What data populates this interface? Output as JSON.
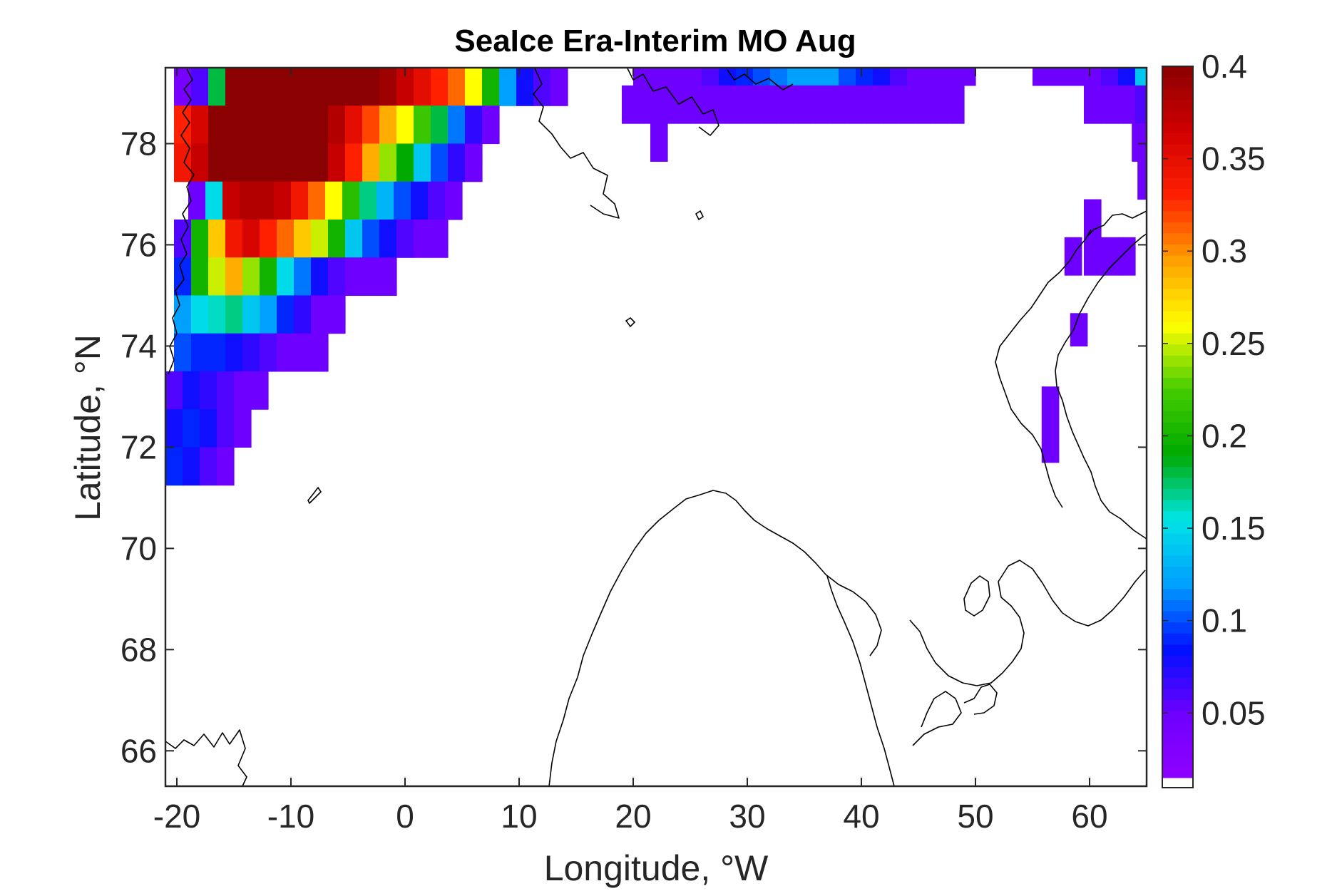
{
  "chart_data": {
    "type": "heatmap",
    "title": "SeaIce Era-Interim MO Aug",
    "xlabel": "Longitude, °W",
    "ylabel": "Latitude, °N",
    "xlim": [
      -21,
      65
    ],
    "ylim": [
      65.3,
      79.5
    ],
    "xticks": [
      -20,
      -10,
      0,
      10,
      20,
      30,
      40,
      50,
      60
    ],
    "yticks": [
      66,
      68,
      70,
      72,
      74,
      76,
      78
    ],
    "colorbar": {
      "clim": [
        0.015,
        0.4
      ],
      "ticks": [
        "0.05",
        "0.1",
        "0.15",
        "0.2",
        "0.25",
        "0.3",
        "0.35",
        "0.4"
      ],
      "colormap": [
        "#ffffff",
        "#8f00ff",
        "#6e00ff",
        "#0010ff",
        "#00a0ff",
        "#00e5e5",
        "#00aa00",
        "#44cc00",
        "#ffff00",
        "#ffa000",
        "#ff2000",
        "#d00000",
        "#8b0000"
      ]
    },
    "cell_size": {
      "lon": 1.5,
      "lat": 0.75
    },
    "cells": [
      {
        "lat0": 78.75,
        "lat1": 79.5,
        "lon": -20.25,
        "values": [
          0.04,
          0.06,
          0.18,
          0.4,
          0.4,
          0.4,
          0.4,
          0.4,
          0.4,
          0.4,
          0.4,
          0.4,
          0.39,
          0.37,
          0.35,
          0.33,
          0.31,
          0.26,
          0.2,
          0.12,
          0.08,
          0.06,
          0.05
        ]
      },
      {
        "lat0": 78.0,
        "lat1": 78.75,
        "lon": -20.25,
        "values": [
          0.33,
          0.36,
          0.4,
          0.4,
          0.4,
          0.4,
          0.4,
          0.4,
          0.4,
          0.38,
          0.35,
          0.32,
          0.29,
          0.26,
          0.22,
          0.18,
          0.11,
          0.07,
          0.05
        ]
      },
      {
        "lat0": 77.25,
        "lat1": 78.0,
        "lon": -20.25,
        "values": [
          0.34,
          0.37,
          0.4,
          0.4,
          0.4,
          0.4,
          0.4,
          0.4,
          0.4,
          0.37,
          0.33,
          0.29,
          0.24,
          0.19,
          0.14,
          0.1,
          0.07,
          0.05
        ]
      },
      {
        "lat0": 76.5,
        "lat1": 77.25,
        "lon": -19.0,
        "values": [
          0.05,
          0.15,
          0.37,
          0.38,
          0.38,
          0.37,
          0.34,
          0.31,
          0.26,
          0.21,
          0.17,
          0.13,
          0.1,
          0.08,
          0.06,
          0.05
        ]
      },
      {
        "lat0": 75.75,
        "lat1": 76.5,
        "lon": -20.25,
        "values": [
          0.06,
          0.2,
          0.28,
          0.34,
          0.36,
          0.33,
          0.31,
          0.28,
          0.25,
          0.2,
          0.14,
          0.1,
          0.08,
          0.06,
          0.05,
          0.05
        ]
      },
      {
        "lat0": 75.0,
        "lat1": 75.75,
        "lon": -20.25,
        "values": [
          0.09,
          0.2,
          0.25,
          0.29,
          0.24,
          0.2,
          0.15,
          0.11,
          0.08,
          0.06,
          0.05,
          0.05,
          0.05
        ]
      },
      {
        "lat0": 74.25,
        "lat1": 75.0,
        "lon": -20.25,
        "values": [
          0.12,
          0.15,
          0.16,
          0.17,
          0.14,
          0.12,
          0.09,
          0.07,
          0.05,
          0.05
        ]
      },
      {
        "lat0": 73.5,
        "lat1": 74.25,
        "lon": -20.25,
        "values": [
          0.1,
          0.09,
          0.09,
          0.08,
          0.07,
          0.06,
          0.05,
          0.05,
          0.05
        ]
      },
      {
        "lat0": 72.75,
        "lat1": 73.5,
        "lon": -21.0,
        "values": [
          0.06,
          0.08,
          0.07,
          0.06,
          0.05,
          0.05
        ]
      },
      {
        "lat0": 72.0,
        "lat1": 72.75,
        "lon": -21.0,
        "values": [
          0.08,
          0.09,
          0.08,
          0.06,
          0.05
        ]
      },
      {
        "lat0": 71.25,
        "lat1": 72.0,
        "lon": -21.0,
        "values": [
          0.09,
          0.08,
          0.06,
          0.05
        ]
      },
      {
        "lat0": 79.15,
        "lat1": 79.5,
        "lon": 20.0,
        "values": [
          0.05,
          0.05,
          0.05,
          0.05,
          0.06,
          0.08,
          0.09,
          0.1,
          0.11,
          0.12,
          0.12,
          0.12,
          0.1,
          0.09,
          0.08,
          0.06,
          0.05,
          0.05,
          0.05,
          0.05
        ]
      },
      {
        "lat0": 78.4,
        "lat1": 79.15,
        "lon": 19.0,
        "values": [
          0.05,
          0.05,
          0.05,
          0.05,
          0.05,
          0.05,
          0.05,
          0.05,
          0.05,
          0.05,
          0.05,
          0.05,
          0.05,
          0.05,
          0.05,
          0.05,
          0.05,
          0.05,
          0.05,
          0.05
        ]
      },
      {
        "lat0": 77.65,
        "lat1": 78.4,
        "lon": 21.5,
        "values": [
          0.05
        ]
      },
      {
        "lat0": 79.15,
        "lat1": 79.5,
        "lon": 55.0,
        "values": [
          0.05,
          0.05,
          0.05,
          0.05,
          0.06,
          0.08,
          0.14
        ]
      },
      {
        "lat0": 78.4,
        "lat1": 79.15,
        "lon": 59.5,
        "values": [
          0.05,
          0.05,
          0.05,
          0.06
        ]
      },
      {
        "lat0": 77.65,
        "lat1": 78.4,
        "lon": 63.7,
        "values": [
          0.05
        ]
      },
      {
        "lat0": 76.9,
        "lat1": 77.65,
        "lon": 64.2,
        "values": [
          0.05
        ]
      },
      {
        "lat0": 75.4,
        "lat1": 76.9,
        "lon": 59.5,
        "values": [
          0.05
        ]
      },
      {
        "lat0": 75.4,
        "lat1": 76.15,
        "lon": 61.0,
        "values": [
          0.05,
          0.05
        ]
      },
      {
        "lat0": 75.4,
        "lat1": 76.15,
        "lon": 57.8,
        "values": [
          0.05
        ]
      },
      {
        "lat0": 74.0,
        "lat1": 74.65,
        "lon": 58.3,
        "values": [
          0.05
        ]
      },
      {
        "lat0": 71.7,
        "lat1": 73.2,
        "lon": 55.8,
        "values": [
          0.05
        ]
      }
    ]
  }
}
